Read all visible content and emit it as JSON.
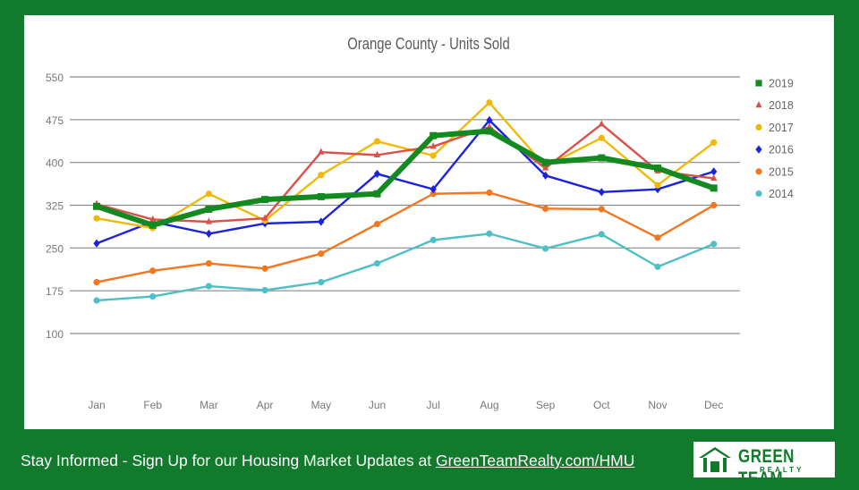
{
  "footer": {
    "text": "Stay Informed - Sign Up for our Housing Market Updates at ",
    "link": "GreenTeamRealty.com/HMU"
  },
  "logo": {
    "main": "GREEN TEAM",
    "sub": "REALTY"
  },
  "colors": {
    "background": "#127a2c",
    "panel": "#ffffff"
  },
  "chart_data": {
    "type": "line",
    "title": "Orange County - Units Sold",
    "xlabel": "",
    "ylabel": "",
    "categories": [
      "Jan",
      "Feb",
      "Mar",
      "Apr",
      "May",
      "Jun",
      "Jul",
      "Aug",
      "Sep",
      "Oct",
      "Nov",
      "Dec"
    ],
    "ylim": [
      100,
      550
    ],
    "yticks": [
      100,
      175,
      250,
      325,
      400,
      475,
      550
    ],
    "grid": true,
    "legend": "right",
    "series": [
      {
        "name": "2019",
        "color": "#138a1f",
        "marker": "square",
        "emphasis": true,
        "values": [
          323,
          290,
          318,
          335,
          340,
          345,
          447,
          455,
          400,
          408,
          390,
          355
        ]
      },
      {
        "name": "2018",
        "color": "#d9514a",
        "marker": "triangle",
        "values": [
          327,
          300,
          296,
          302,
          418,
          413,
          428,
          462,
          390,
          467,
          385,
          372
        ]
      },
      {
        "name": "2017",
        "color": "#f0b90a",
        "marker": "circle",
        "values": [
          302,
          285,
          345,
          298,
          378,
          437,
          412,
          505,
          393,
          443,
          360,
          435
        ]
      },
      {
        "name": "2016",
        "color": "#1a22e0",
        "marker": "diamond",
        "values": [
          258,
          296,
          275,
          293,
          296,
          380,
          353,
          474,
          377,
          348,
          353,
          384
        ]
      },
      {
        "name": "2015",
        "color": "#f27720",
        "marker": "circle",
        "values": [
          190,
          210,
          223,
          214,
          240,
          292,
          345,
          347,
          319,
          318,
          268,
          325
        ]
      },
      {
        "name": "2014",
        "color": "#4fbfc6",
        "marker": "circle",
        "values": [
          158,
          165,
          183,
          176,
          190,
          223,
          264,
          275,
          249,
          274,
          217,
          257
        ]
      }
    ]
  }
}
